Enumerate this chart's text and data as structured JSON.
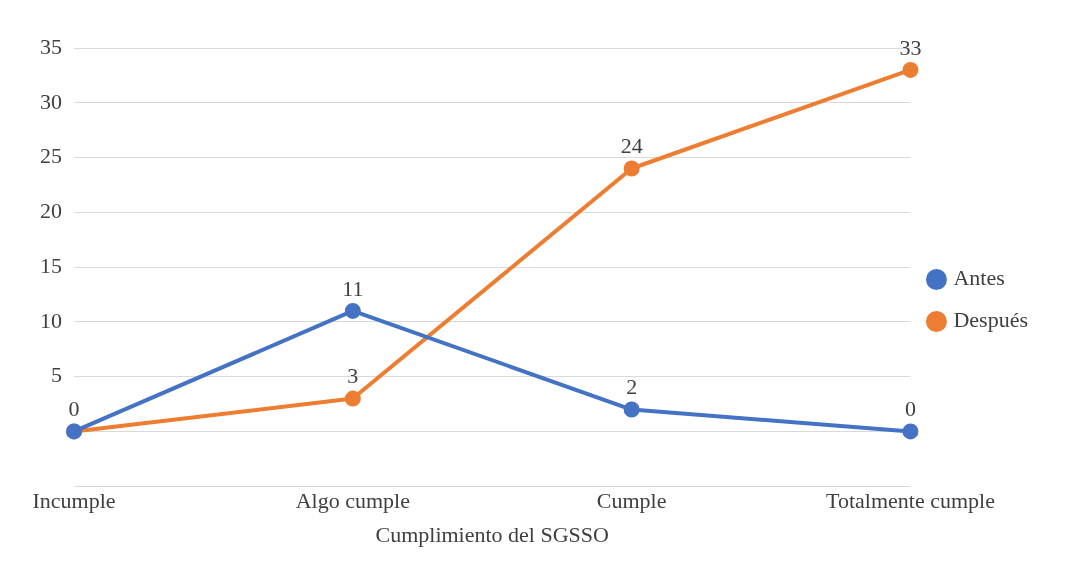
{
  "chart_data": {
    "type": "line",
    "xlabel": "Cumplimiento del SGSSO",
    "categories": [
      "Incumple",
      "Algo cumple",
      "Cumple",
      "Totalmente cumple"
    ],
    "series": [
      {
        "name": "Antes",
        "color": "#4472c4",
        "values": [
          0,
          11,
          2,
          0
        ],
        "value_labels": [
          "0",
          "11",
          "2",
          "0"
        ]
      },
      {
        "name": "Después",
        "color": "#ed7d31",
        "values": [
          0,
          3,
          24,
          33
        ],
        "value_labels": [
          null,
          "3",
          "24",
          "33"
        ]
      }
    ],
    "ylim": [
      -5,
      35
    ],
    "yticks": [
      {
        "value": -5,
        "label": null
      },
      {
        "value": 0,
        "label": null
      },
      5,
      10,
      15,
      20,
      25,
      30,
      35
    ],
    "grid": "y",
    "legend": "right",
    "marker": "circle"
  }
}
